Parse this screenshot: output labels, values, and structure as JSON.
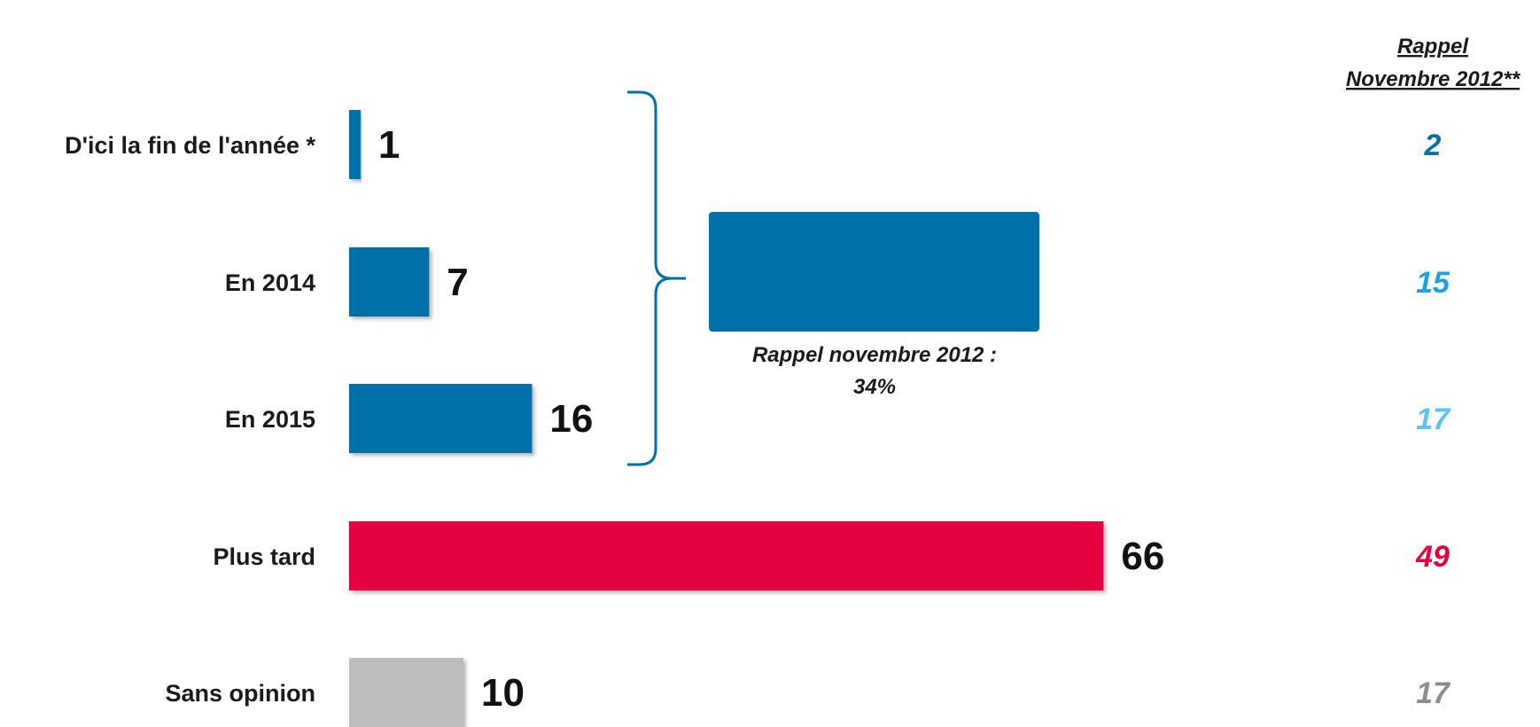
{
  "chart_data": {
    "type": "bar",
    "orientation": "horizontal",
    "categories": [
      "D'ici la fin de l'année *",
      "En 2014",
      "En 2015",
      "Plus tard",
      "Sans opinion"
    ],
    "values": [
      1,
      7,
      16,
      66,
      10
    ],
    "bar_colors": [
      "#0070a8",
      "#0070a8",
      "#0070a8",
      "#e4003f",
      "#bdbdbd"
    ],
    "recall_header": [
      "Rappel",
      "Novembre 2012**"
    ],
    "recall_values": [
      "2",
      "15",
      "17",
      "49",
      "17"
    ],
    "recall_colors": [
      "#0070a8",
      "#1ea0dc",
      "#5cc2ef",
      "#e4003f",
      "#8c8c8c"
    ],
    "group_note": {
      "value": 24,
      "color": "#0070a8",
      "lines": [
        "Rappel novembre 2012 :",
        "34%"
      ]
    }
  }
}
